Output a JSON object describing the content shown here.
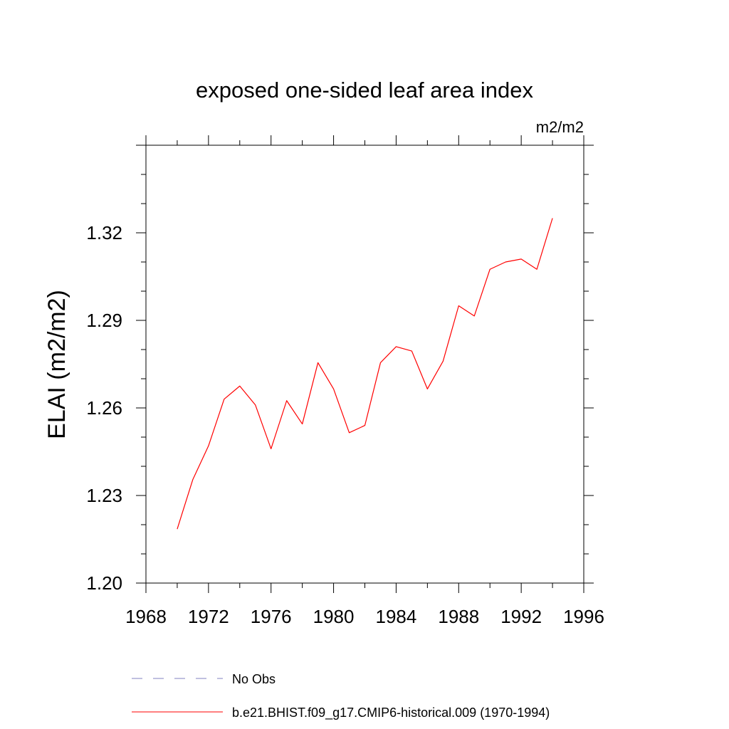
{
  "chart_data": {
    "type": "line",
    "title": "exposed one-sided leaf area index",
    "units_label": "m2/m2",
    "ylabel": "ELAI  (m2/m2)",
    "xlabel": "",
    "xlim": [
      1968,
      1996
    ],
    "ylim": [
      1.2,
      1.35
    ],
    "x_ticks": [
      1968,
      1972,
      1976,
      1980,
      1984,
      1988,
      1992,
      1996
    ],
    "x_tick_labels": [
      "1968",
      "1972",
      "1976",
      "1980",
      "1984",
      "1988",
      "1992",
      "1996"
    ],
    "y_ticks": [
      1.2,
      1.23,
      1.26,
      1.29,
      1.32
    ],
    "y_tick_labels": [
      "1.20",
      "1.23",
      "1.26",
      "1.29",
      "1.32"
    ],
    "grid": false,
    "legend_position": "bottom",
    "series": [
      {
        "name": "b.e21.BHIST.f09_g17.CMIP6-historical.009 (1970-1994)",
        "color": "#ff0000",
        "dash": "solid",
        "x": [
          1970,
          1971,
          1972,
          1973,
          1974,
          1975,
          1976,
          1977,
          1978,
          1979,
          1980,
          1981,
          1982,
          1983,
          1984,
          1985,
          1986,
          1987,
          1988,
          1989,
          1990,
          1991,
          1992,
          1993,
          1994
        ],
        "values": [
          1.2185,
          1.2355,
          1.247,
          1.263,
          1.2675,
          1.261,
          1.246,
          1.2625,
          1.2545,
          1.2755,
          1.2665,
          1.2515,
          1.254,
          1.2755,
          1.281,
          1.2795,
          1.2665,
          1.276,
          1.295,
          1.2915,
          1.3075,
          1.31,
          1.311,
          1.3075,
          1.325
        ]
      }
    ],
    "legend": [
      {
        "label": "No Obs",
        "color": "#8080c0",
        "dash": "dashed"
      },
      {
        "label": "b.e21.BHIST.f09_g17.CMIP6-historical.009 (1970-1994)",
        "color": "#ff0000",
        "dash": "solid"
      }
    ]
  }
}
